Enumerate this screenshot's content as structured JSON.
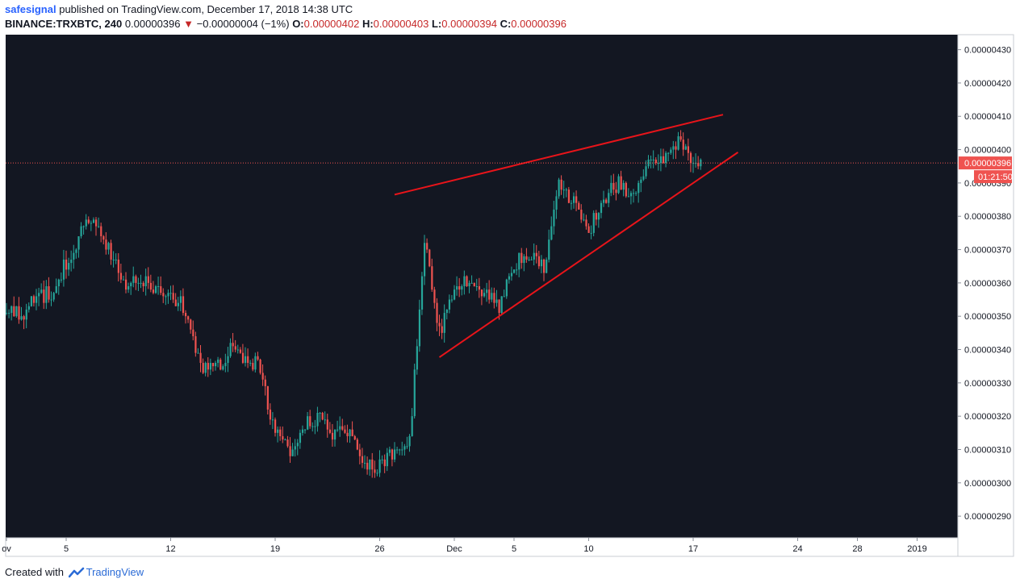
{
  "header": {
    "author": "safesignal",
    "published_text": "published on TradingView.com, December 17, 2018 14:38 UTC",
    "symbol": "BINANCE:TRXBTC, 240",
    "last": "0.00000396",
    "change_arrow": "▼",
    "change": "−0.00000004 (−1%)",
    "o_label": "O:",
    "o_value": "0.00000402",
    "h_label": "H:",
    "h_value": "0.00000403",
    "l_label": "L:",
    "l_value": "0.00000394",
    "c_label": "C:",
    "c_value": "0.00000396"
  },
  "footer": {
    "created_with": "Created with",
    "brand": "TradingView",
    "logo_icon": "tradingview-logo-icon"
  },
  "colors": {
    "background": "#131722",
    "up": "#26a69a",
    "down": "#ef5350",
    "trendline": "#e8141a",
    "price_label_bg": "#ef5350",
    "axis_text": "#131722"
  },
  "chart_data": {
    "type": "candlestick",
    "title": "",
    "xlabel": "",
    "ylabel": "",
    "ylim": [
      2.835e-06,
      4.345e-06
    ],
    "grid": false,
    "y_ticks": [
      "0.00000430",
      "0.00000420",
      "0.00000410",
      "0.00000400",
      "0.00000390",
      "0.00000380",
      "0.00000370",
      "0.00000360",
      "0.00000350",
      "0.00000340",
      "0.00000330",
      "0.00000320",
      "0.00000310",
      "0.00000300",
      "0.00000290"
    ],
    "x_ticks": [
      {
        "label": "ov",
        "date": "2018-11-01"
      },
      {
        "label": "5",
        "date": "2018-11-05"
      },
      {
        "label": "12",
        "date": "2018-11-12"
      },
      {
        "label": "19",
        "date": "2018-11-19"
      },
      {
        "label": "26",
        "date": "2018-11-26"
      },
      {
        "label": "Dec",
        "date": "2018-12-01"
      },
      {
        "label": "5",
        "date": "2018-12-05"
      },
      {
        "label": "10",
        "date": "2018-12-10"
      },
      {
        "label": "17",
        "date": "2018-12-17"
      },
      {
        "label": "24",
        "date": "2018-12-24"
      },
      {
        "label": "28",
        "date": "2018-12-28"
      },
      {
        "label": "2019",
        "date": "2019-01-01"
      }
    ],
    "current_price": {
      "value": "0.00000396",
      "countdown": "01:21:50"
    },
    "anchors": [
      {
        "date": "2018-11-01",
        "price": 3.51e-06
      },
      {
        "date": "2018-11-02",
        "price": 3.5e-06
      },
      {
        "date": "2018-11-03",
        "price": 3.56e-06
      },
      {
        "date": "2018-11-04",
        "price": 3.57e-06
      },
      {
        "date": "2018-11-05",
        "price": 3.66e-06
      },
      {
        "date": "2018-11-06",
        "price": 3.75e-06
      },
      {
        "date": "2018-11-07",
        "price": 3.79e-06
      },
      {
        "date": "2018-11-08",
        "price": 3.68e-06
      },
      {
        "date": "2018-11-09",
        "price": 3.6e-06
      },
      {
        "date": "2018-11-10",
        "price": 3.61e-06
      },
      {
        "date": "2018-11-11",
        "price": 3.59e-06
      },
      {
        "date": "2018-11-12",
        "price": 3.57e-06
      },
      {
        "date": "2018-11-13",
        "price": 3.52e-06
      },
      {
        "date": "2018-11-14",
        "price": 3.35e-06
      },
      {
        "date": "2018-11-15",
        "price": 3.34e-06
      },
      {
        "date": "2018-11-16",
        "price": 3.4e-06
      },
      {
        "date": "2018-11-17",
        "price": 3.38e-06
      },
      {
        "date": "2018-11-18",
        "price": 3.34e-06
      },
      {
        "date": "2018-11-19",
        "price": 3.15e-06
      },
      {
        "date": "2018-11-20",
        "price": 3.1e-06
      },
      {
        "date": "2018-11-21",
        "price": 3.18e-06
      },
      {
        "date": "2018-11-22",
        "price": 3.2e-06
      },
      {
        "date": "2018-11-23",
        "price": 3.15e-06
      },
      {
        "date": "2018-11-24",
        "price": 3.15e-06
      },
      {
        "date": "2018-11-25",
        "price": 3.04e-06
      },
      {
        "date": "2018-11-26",
        "price": 3.06e-06
      },
      {
        "date": "2018-11-27",
        "price": 3.08e-06
      },
      {
        "date": "2018-11-28",
        "price": 3.12e-06
      },
      {
        "date": "2018-11-29",
        "price": 3.72e-06
      },
      {
        "date": "2018-11-30",
        "price": 3.45e-06
      },
      {
        "date": "2018-12-01",
        "price": 3.58e-06
      },
      {
        "date": "2018-12-02",
        "price": 3.61e-06
      },
      {
        "date": "2018-12-03",
        "price": 3.58e-06
      },
      {
        "date": "2018-12-04",
        "price": 3.52e-06
      },
      {
        "date": "2018-12-05",
        "price": 3.66e-06
      },
      {
        "date": "2018-12-06",
        "price": 3.68e-06
      },
      {
        "date": "2018-12-07",
        "price": 3.65e-06
      },
      {
        "date": "2018-12-08",
        "price": 3.9e-06
      },
      {
        "date": "2018-12-09",
        "price": 3.85e-06
      },
      {
        "date": "2018-12-10",
        "price": 3.75e-06
      },
      {
        "date": "2018-12-11",
        "price": 3.85e-06
      },
      {
        "date": "2018-12-12",
        "price": 3.9e-06
      },
      {
        "date": "2018-12-13",
        "price": 3.86e-06
      },
      {
        "date": "2018-12-14",
        "price": 3.96e-06
      },
      {
        "date": "2018-12-15",
        "price": 3.97e-06
      },
      {
        "date": "2018-12-16",
        "price": 4.03e-06
      },
      {
        "date": "2018-12-17",
        "price": 3.96e-06
      }
    ],
    "trendlines": [
      {
        "name": "upper",
        "points": [
          {
            "date": "2018-11-27",
            "price": 3.865e-06
          },
          {
            "date": "2018-12-19",
            "price": 4.105e-06
          }
        ]
      },
      {
        "name": "lower",
        "points": [
          {
            "date": "2018-11-30",
            "price": 3.377e-06
          },
          {
            "date": "2018-12-20",
            "price": 3.992e-06
          }
        ]
      }
    ]
  }
}
